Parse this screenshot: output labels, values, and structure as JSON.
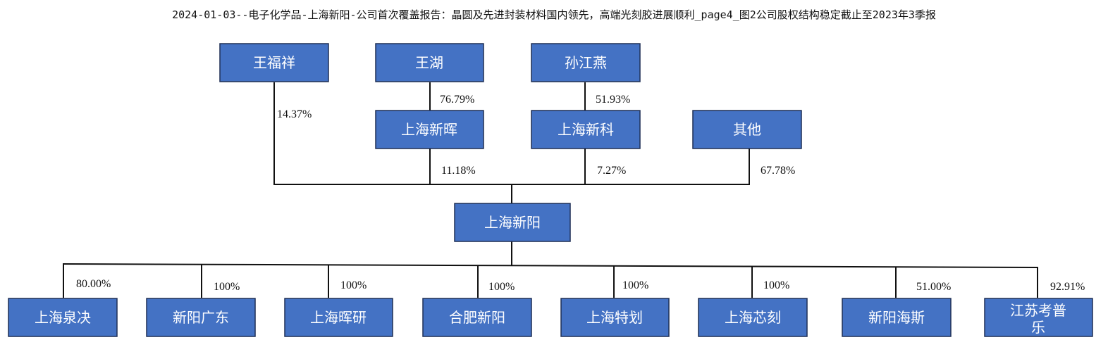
{
  "title": "2024-01-03--电子化学品-上海新阳-公司首次覆盖报告：晶圆及先进封装材料国内领先，高端光刻胶进展顺利_page4_图2公司股权结构稳定截止至2023年3季报",
  "nodes": {
    "wang_fuxiang": "王福祥",
    "wang_hu": "王湖",
    "sun_jiangyan": "孙江燕",
    "sh_xinhui": "上海新晖",
    "sh_xinke": "上海新科",
    "others": "其他",
    "sh_xinyang": "上海新阳",
    "sh_quanjue": "上海泉决",
    "xinyang_guangdong": "新阳广东",
    "sh_huiyan": "上海晖研",
    "hefei_xinyang": "合肥新阳",
    "sh_tehua": "上海特划",
    "sh_xinke2": "上海芯刻",
    "xinyang_haisi": "新阳海斯",
    "jiangsu_kaopule": [
      "江苏考普",
      "乐"
    ]
  },
  "shares": {
    "wang_hu_to_xinhui": "76.79%",
    "sun_to_xinke": "51.93%",
    "wang_fuxiang_to_xinyang": "14.37%",
    "xinhui_to_xinyang": "11.18%",
    "xinke_to_xinyang": "7.27%",
    "others_to_xinyang": "67.78%",
    "to_quanjue": "80.00%",
    "to_guangdong": "100%",
    "to_huiyan": "100%",
    "to_hefei": "100%",
    "to_tehua": "100%",
    "to_xinke2": "100%",
    "to_haisi": "51.00%",
    "to_kaopule": "92.91%"
  }
}
